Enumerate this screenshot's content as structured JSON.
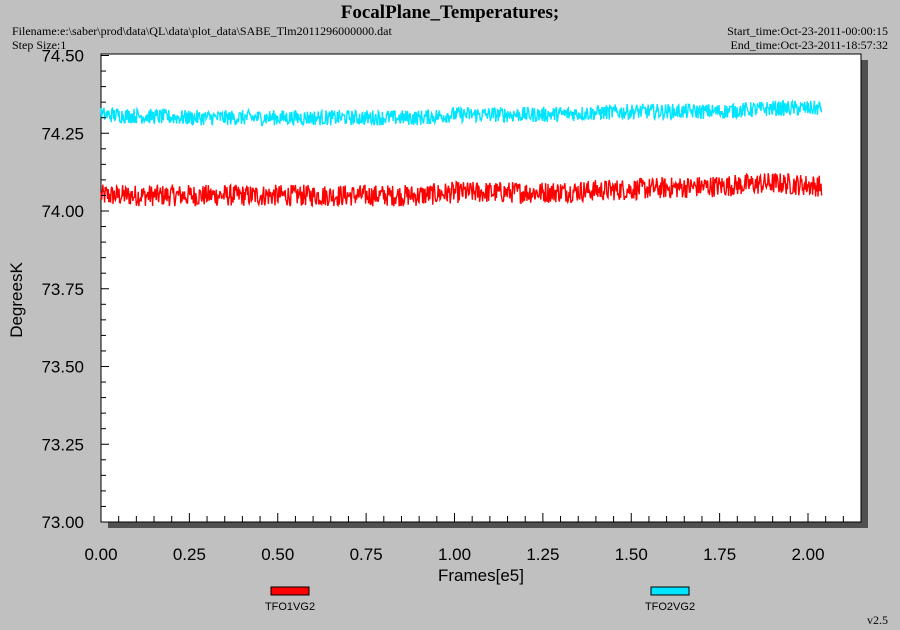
{
  "header": {
    "title": "FocalPlane_Temperatures;",
    "filename": "Filename:e:\\saber\\prod\\data\\QL\\data\\plot_data\\SABE_Tlm2011296000000.dat",
    "step_size": "Step Size:1",
    "start_time": "Start_time:Oct-23-2011-00:00:15",
    "end_time": "End_time:Oct-23-2011-18:57:32",
    "version": "v2.5"
  },
  "chart_data": {
    "type": "line",
    "title": "FocalPlane_Temperatures;",
    "xlabel": "Frames[e5]",
    "ylabel": "DegreesK",
    "xlim": [
      0.0,
      2.13
    ],
    "ylim": [
      73.0,
      74.5
    ],
    "xticks": [
      "0.00",
      "0.25",
      "0.50",
      "0.75",
      "1.00",
      "1.25",
      "1.50",
      "1.75",
      "2.00"
    ],
    "yticks": [
      "73.00",
      "73.25",
      "73.50",
      "73.75",
      "74.00",
      "74.25",
      "74.50"
    ],
    "grid": false,
    "legend_position": "bottom",
    "series": [
      {
        "name": "TFO1VG2",
        "color": "#ff0000",
        "x": [
          0.0,
          0.25,
          0.5,
          0.75,
          0.9,
          1.0,
          1.25,
          1.5,
          1.75,
          1.9,
          2.04
        ],
        "y": [
          74.05,
          74.05,
          74.05,
          74.05,
          74.05,
          74.06,
          74.06,
          74.07,
          74.08,
          74.09,
          74.08
        ],
        "band": 0.035
      },
      {
        "name": "TFO2VG2",
        "color": "#00e5ff",
        "x": [
          0.0,
          0.25,
          0.5,
          0.75,
          0.9,
          1.0,
          1.25,
          1.5,
          1.75,
          1.9,
          2.04
        ],
        "y": [
          74.31,
          74.3,
          74.3,
          74.3,
          74.3,
          74.31,
          74.31,
          74.32,
          74.32,
          74.33,
          74.33
        ],
        "band": 0.025
      }
    ]
  }
}
